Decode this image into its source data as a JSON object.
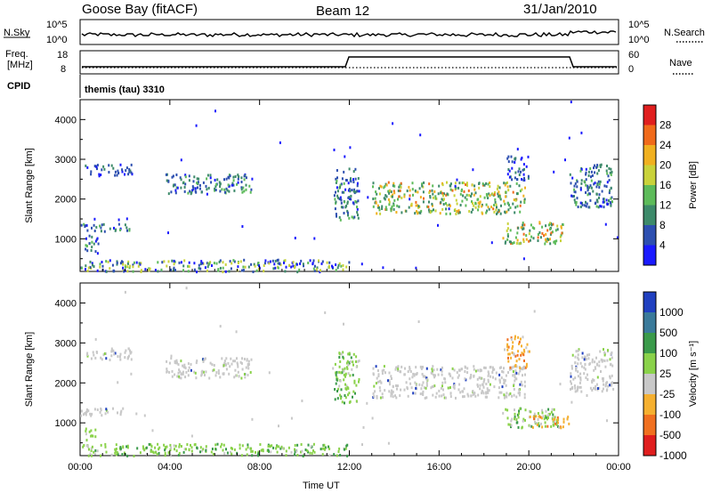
{
  "header": {
    "station": "Goose Bay (fitACF)",
    "beam": "Beam 12",
    "date": "31/Jan/2010"
  },
  "top_panels": {
    "nsky_label": "N.Sky",
    "nsky_ticks": [
      "10^5",
      "10^0"
    ],
    "nsearch_label": "N.Search",
    "nsearch_ticks": [
      "10^5",
      "10^0"
    ],
    "freq_label_line1": "Freq.",
    "freq_label_line2": "[MHz]",
    "freq_ticks": [
      "18",
      "8"
    ],
    "nave_label": "Nave",
    "nave_ticks": [
      "60",
      "0"
    ],
    "cpid_label": "CPID",
    "cpid_text": "themis (tau) 3310"
  },
  "chart_data": [
    {
      "type": "heatmap",
      "name": "power",
      "xlabel": "",
      "ylabel": "Slant Range [km]",
      "x_ticks": [
        "00:00",
        "04:00",
        "08:00",
        "12:00",
        "16:00",
        "20:00",
        "00:00"
      ],
      "x_range_hours": [
        0,
        24
      ],
      "y_ticks": [
        "1000",
        "2000",
        "3000",
        "4000"
      ],
      "y_range_km": [
        180,
        4500
      ],
      "colorbar_label": "Power [dB]",
      "colorbar_ticks": [
        "28",
        "24",
        "20",
        "16",
        "12",
        "8",
        "4"
      ],
      "colorbar_colors": [
        "#1a1aff",
        "#2d4fb0",
        "#3d8a6a",
        "#5dbb5a",
        "#c9d23a",
        "#f0b020",
        "#f06a1a",
        "#e01e1e"
      ],
      "regions": [
        {
          "t": [
            0.2,
            2.3
          ],
          "r": [
            2600,
            2900
          ],
          "level": "low"
        },
        {
          "t": [
            0.0,
            2.2
          ],
          "r": [
            1200,
            1400
          ],
          "level": "mid"
        },
        {
          "t": [
            0.2,
            0.8
          ],
          "r": [
            650,
            1150
          ],
          "level": "mid"
        },
        {
          "t": [
            3.8,
            7.6
          ],
          "r": [
            2150,
            2650
          ],
          "level": "mid"
        },
        {
          "t": [
            11.3,
            12.4
          ],
          "r": [
            1500,
            2800
          ],
          "level": "mid"
        },
        {
          "t": [
            13.0,
            19.8
          ],
          "r": [
            1650,
            2450
          ],
          "level": "high"
        },
        {
          "t": [
            19.0,
            20.0
          ],
          "r": [
            2500,
            3100
          ],
          "level": "low"
        },
        {
          "t": [
            18.8,
            21.5
          ],
          "r": [
            900,
            1450
          ],
          "level": "high"
        },
        {
          "t": [
            21.8,
            23.7
          ],
          "r": [
            1800,
            2900
          ],
          "level": "mid"
        },
        {
          "t": [
            0.0,
            12.0
          ],
          "r": [
            200,
            500
          ],
          "level": "mixed"
        }
      ]
    },
    {
      "type": "heatmap",
      "name": "velocity",
      "xlabel": "Time UT",
      "ylabel": "Slant Range [km]",
      "x_ticks": [
        "00:00",
        "04:00",
        "08:00",
        "12:00",
        "16:00",
        "20:00",
        "00:00"
      ],
      "x_range_hours": [
        0,
        24
      ],
      "y_ticks": [
        "1000",
        "2000",
        "3000",
        "4000"
      ],
      "y_range_km": [
        180,
        4500
      ],
      "colorbar_label": "Velocity [m s⁻¹]",
      "colorbar_ticks": [
        "1000",
        "500",
        "100",
        "25",
        "-25",
        "-100",
        "-500",
        "-1000"
      ],
      "colorbar_colors": [
        "#2040c0",
        "#3a7a9a",
        "#3a9a4a",
        "#8ad24a",
        "#c8c8c8",
        "#f5b030",
        "#f07020",
        "#e01e1e"
      ],
      "regions": [
        {
          "t": [
            0.2,
            2.3
          ],
          "r": [
            2600,
            2900
          ],
          "level": "gray"
        },
        {
          "t": [
            0.0,
            2.2
          ],
          "r": [
            1200,
            1400
          ],
          "level": "gray"
        },
        {
          "t": [
            0.1,
            0.7
          ],
          "r": [
            600,
            900
          ],
          "level": "green"
        },
        {
          "t": [
            3.8,
            7.6
          ],
          "r": [
            2150,
            2650
          ],
          "level": "gray"
        },
        {
          "t": [
            11.3,
            12.4
          ],
          "r": [
            1500,
            2800
          ],
          "level": "green"
        },
        {
          "t": [
            13.0,
            19.8
          ],
          "r": [
            1650,
            2450
          ],
          "level": "gray"
        },
        {
          "t": [
            19.0,
            20.0
          ],
          "r": [
            2400,
            3200
          ],
          "level": "orange"
        },
        {
          "t": [
            18.8,
            21.3
          ],
          "r": [
            900,
            1400
          ],
          "level": "green"
        },
        {
          "t": [
            20.0,
            21.8
          ],
          "r": [
            900,
            1200
          ],
          "level": "orange"
        },
        {
          "t": [
            21.8,
            23.7
          ],
          "r": [
            1800,
            2900
          ],
          "level": "gray"
        },
        {
          "t": [
            0.0,
            12.0
          ],
          "r": [
            200,
            500
          ],
          "level": "green"
        }
      ]
    }
  ]
}
